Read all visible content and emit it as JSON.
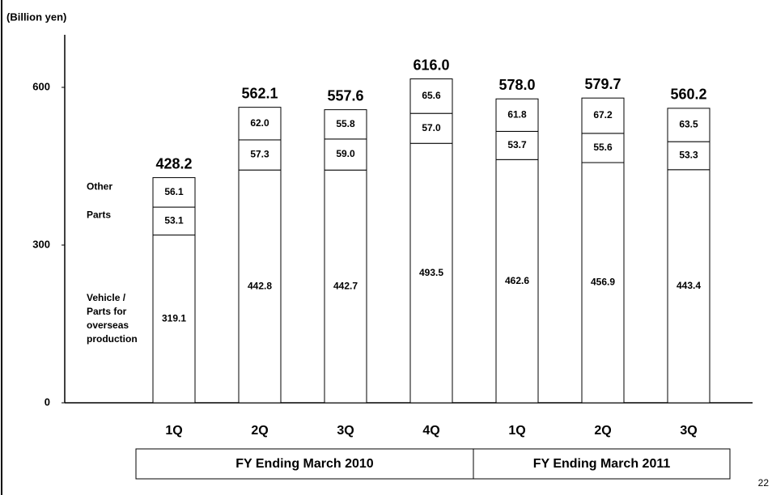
{
  "chart_data": {
    "type": "stacked_bar",
    "y_unit": "(Billion yen)",
    "categories": [
      "1Q",
      "2Q",
      "3Q",
      "4Q",
      "1Q",
      "2Q",
      "3Q"
    ],
    "groups": [
      "FY Ending March 2010",
      "FY Ending March 2011"
    ],
    "series": [
      {
        "name": "Vehicle / Parts for overseas production",
        "color": "#ffffff",
        "values": [
          319.1,
          442.8,
          442.7,
          493.5,
          462.6,
          456.9,
          443.4
        ],
        "value_labels": [
          "319.1",
          "442.8",
          "442.7",
          "493.5",
          "462.6",
          "456.9",
          "443.4"
        ]
      },
      {
        "name": "Parts",
        "color": "#ffffff",
        "values": [
          53.1,
          57.3,
          59.0,
          57.0,
          53.7,
          55.6,
          53.3
        ],
        "value_labels": [
          "53.1",
          "57.3",
          "59.0",
          "57.0",
          "53.7",
          "55.6",
          "53.3"
        ]
      },
      {
        "name": "Other",
        "color": "#ffffff",
        "values": [
          56.1,
          62.0,
          55.8,
          65.6,
          61.8,
          67.2,
          63.5
        ],
        "value_labels": [
          "56.1",
          "62.0",
          "55.8",
          "65.6",
          "61.8",
          "67.2",
          "63.5"
        ]
      }
    ],
    "totals": [
      428.2,
      562.1,
      557.6,
      616.0,
      578.0,
      579.7,
      560.2
    ],
    "total_labels": [
      "428.2",
      "562.1",
      "557.6",
      "616.0",
      "578.0",
      "579.7",
      "560.2"
    ],
    "ylim": [
      0,
      700
    ],
    "yticks": [
      0,
      300,
      600
    ],
    "grid": false
  },
  "page_number": "22"
}
